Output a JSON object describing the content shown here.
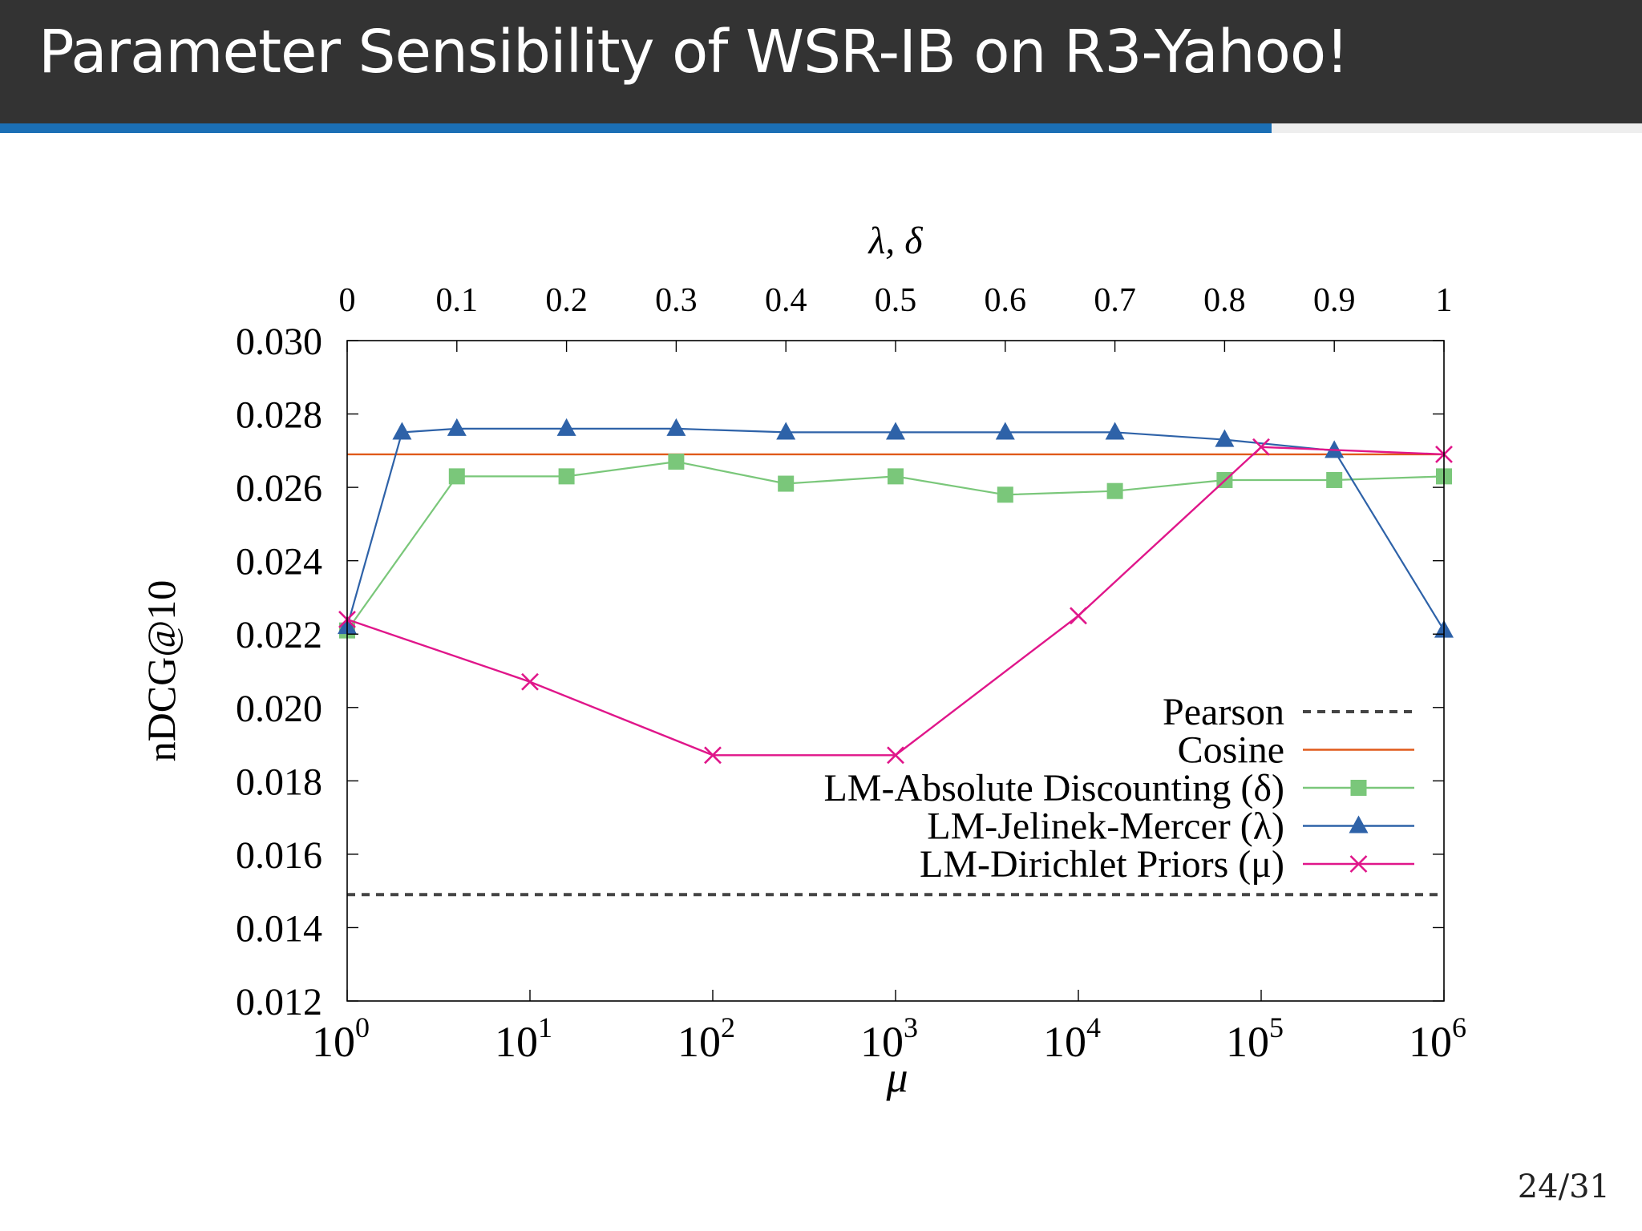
{
  "slide": {
    "title": "Parameter Sensibility of WSR-IB on R3-Yahoo!",
    "page": "24/31",
    "progress": 0.7742
  },
  "chart_data": {
    "type": "line",
    "ylabel": "nDCG@10",
    "xlabel_bottom": "μ",
    "xlabel_top": "λ, δ",
    "ylim": [
      0.012,
      0.03
    ],
    "yticks": [
      "0.030",
      "0.028",
      "0.026",
      "0.024",
      "0.022",
      "0.020",
      "0.018",
      "0.016",
      "0.014",
      "0.012"
    ],
    "x_bottom": {
      "scale": "log",
      "lim": [
        1,
        1000000
      ],
      "ticks": [
        "0",
        "1",
        "2",
        "3",
        "4",
        "5",
        "6"
      ],
      "tick_base": "10"
    },
    "x_top": {
      "scale": "linear",
      "lim": [
        0,
        1
      ],
      "ticks": [
        "0",
        "0.1",
        "0.2",
        "0.3",
        "0.4",
        "0.5",
        "0.6",
        "0.7",
        "0.8",
        "0.9",
        "1"
      ]
    },
    "legend_position": "lower-right",
    "series": [
      {
        "name": "Pearson",
        "axis": "constant",
        "value": 0.0149,
        "color": "#444444",
        "style": "dashed",
        "marker": "none"
      },
      {
        "name": "Cosine",
        "axis": "constant",
        "value": 0.0269,
        "color": "#e05a1b",
        "style": "solid",
        "marker": "none"
      },
      {
        "name": "LM-Absolute Discounting (δ)",
        "axis": "top",
        "color": "#7ac77a",
        "style": "solid",
        "marker": "square",
        "x": [
          0,
          0.1,
          0.2,
          0.3,
          0.4,
          0.5,
          0.6,
          0.7,
          0.8,
          0.9,
          1
        ],
        "values": [
          0.0221,
          0.0263,
          0.0263,
          0.0267,
          0.0261,
          0.0263,
          0.0258,
          0.0259,
          0.0262,
          0.0262,
          0.0263
        ]
      },
      {
        "name": "LM-Jelinek-Mercer (λ)",
        "axis": "top",
        "color": "#2e62a8",
        "style": "solid",
        "marker": "triangle",
        "x": [
          0,
          0.05,
          0.1,
          0.2,
          0.3,
          0.4,
          0.5,
          0.6,
          0.7,
          0.8,
          0.9,
          1
        ],
        "values": [
          0.0222,
          0.0275,
          0.0276,
          0.0276,
          0.0276,
          0.0275,
          0.0275,
          0.0275,
          0.0275,
          0.0273,
          0.027,
          0.0221
        ]
      },
      {
        "name": "LM-Dirichlet Priors (μ)",
        "axis": "bottom",
        "color": "#e0168a",
        "style": "solid",
        "marker": "x",
        "x": [
          1,
          10,
          100,
          1000,
          10000,
          100000,
          1000000
        ],
        "values": [
          0.0224,
          0.0207,
          0.0187,
          0.0187,
          0.0225,
          0.0271,
          0.0269
        ]
      }
    ]
  }
}
